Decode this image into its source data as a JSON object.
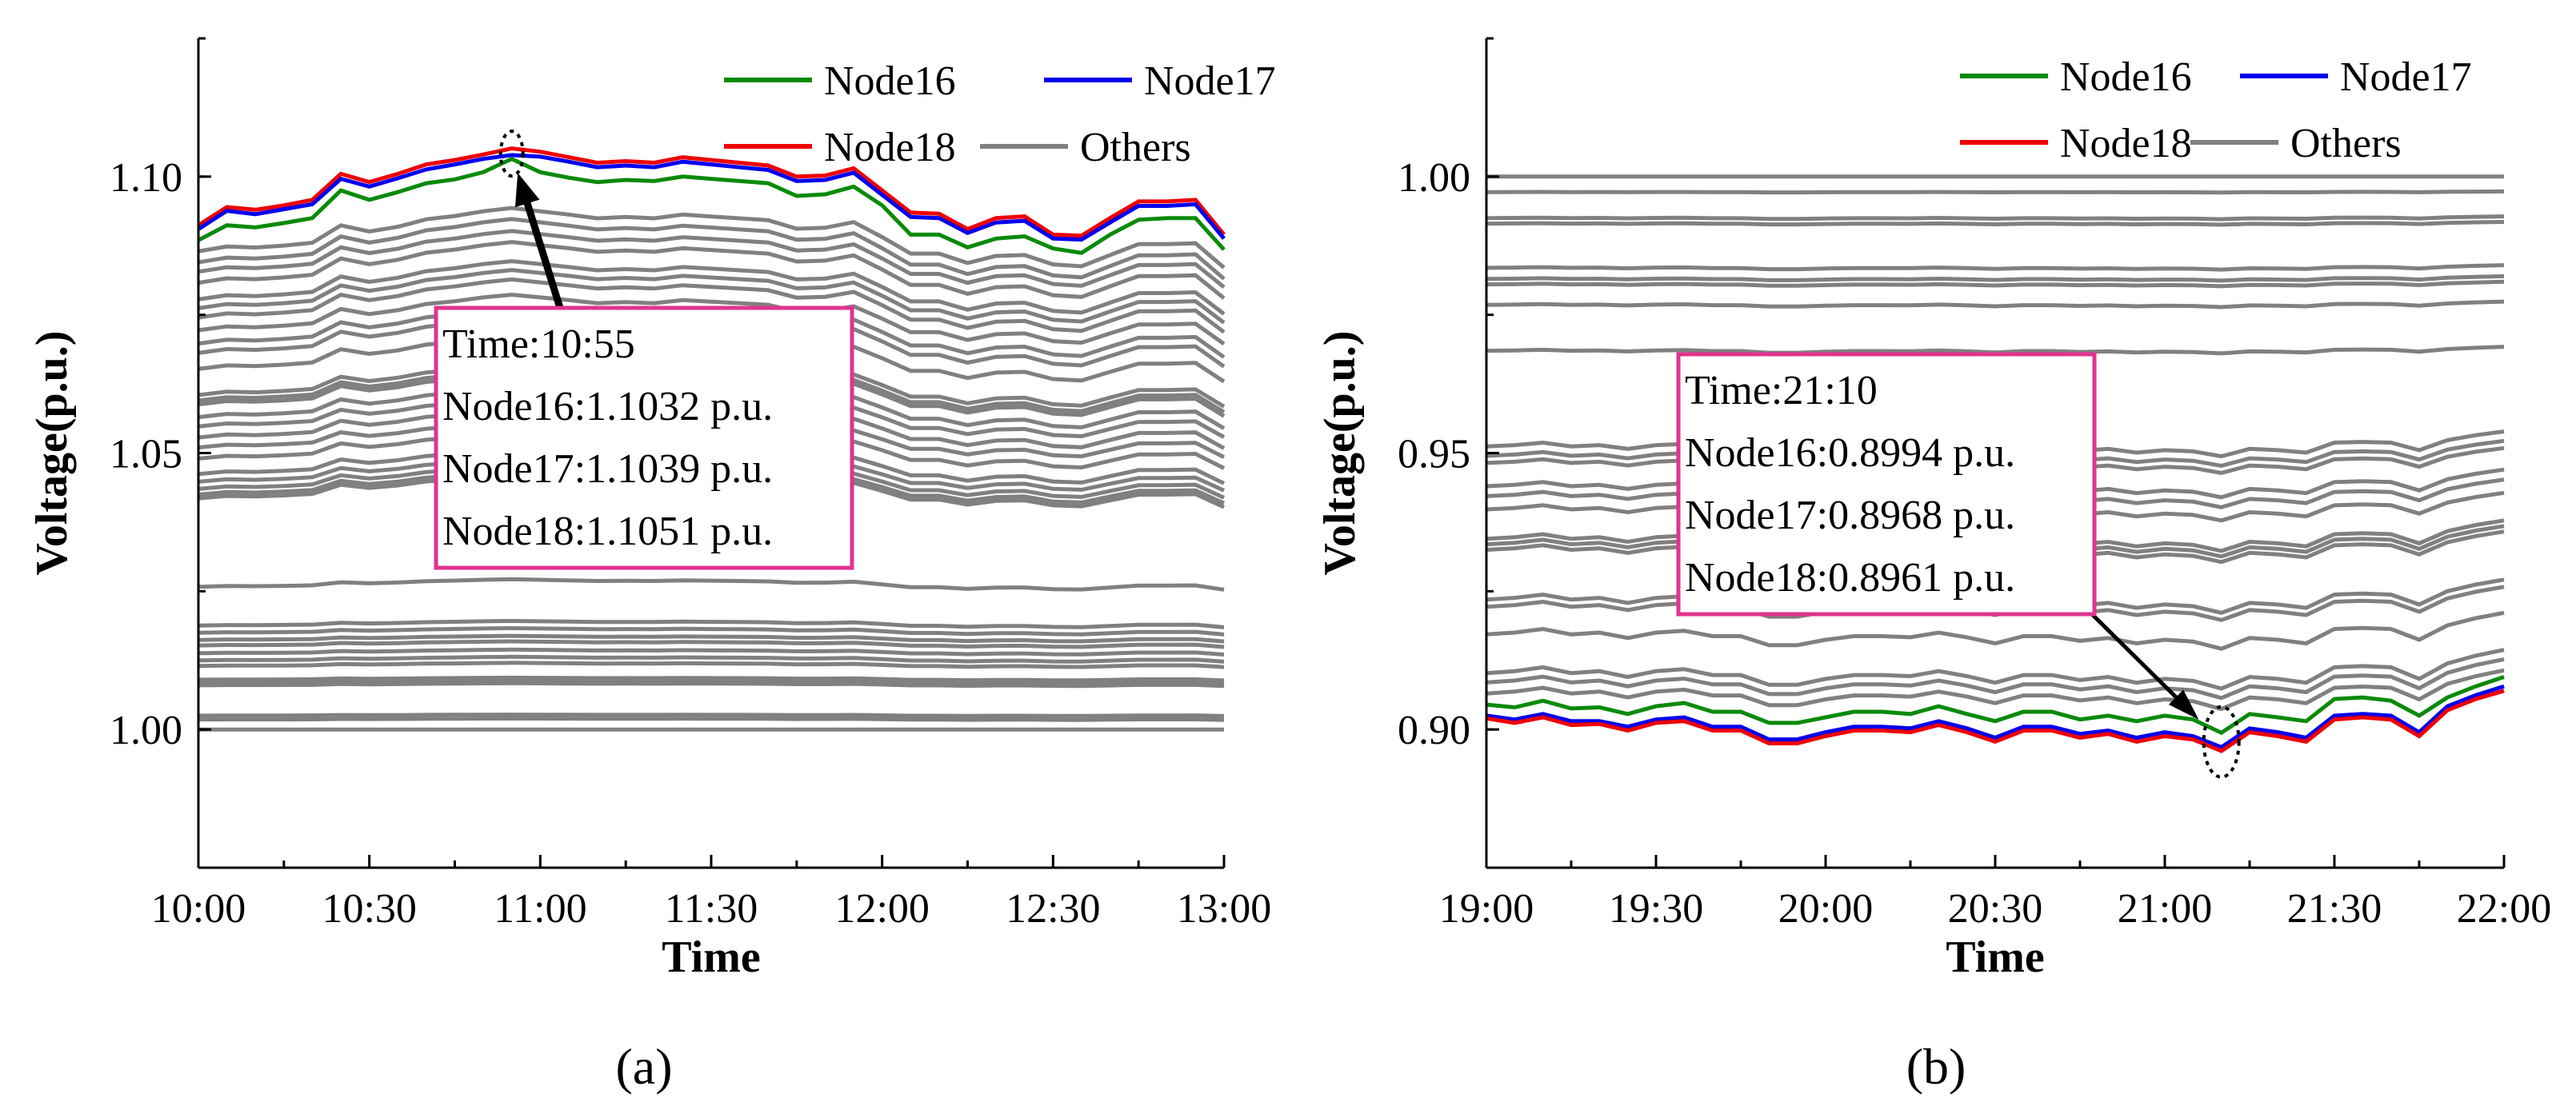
{
  "colors": {
    "node16": "#0a8a0a",
    "node17": "#0000ee",
    "node18": "#ee0000",
    "others": "#808080",
    "annotation_box": "#e0338f",
    "axes": "#000000"
  },
  "chart_data": [
    {
      "type": "line",
      "panel_label": "(a)",
      "xlabel": "Time",
      "ylabel": "Voltage(p.u.)",
      "xlim": [
        "10:00",
        "13:00"
      ],
      "ylim": [
        0.975,
        1.125
      ],
      "xticks": [
        "10:00",
        "10:30",
        "11:00",
        "11:30",
        "12:00",
        "12:30",
        "13:00"
      ],
      "yticks": [
        "1.00",
        "1.05",
        "1.10"
      ],
      "ytick_values": [
        1.0,
        1.05,
        1.1
      ],
      "grid": false,
      "legend": {
        "placement": "top-right",
        "entries": [
          "Node16",
          "Node17",
          "Node18",
          "Others"
        ]
      },
      "x": [
        "10:00",
        "10:05",
        "10:10",
        "10:15",
        "10:20",
        "10:25",
        "10:30",
        "10:35",
        "10:40",
        "10:45",
        "10:50",
        "10:55",
        "11:00",
        "11:05",
        "11:10",
        "11:15",
        "11:20",
        "11:25",
        "11:30",
        "11:35",
        "11:40",
        "11:45",
        "11:50",
        "11:55",
        "12:00",
        "12:05",
        "12:10",
        "12:15",
        "12:20",
        "12:25",
        "12:30",
        "12:35",
        "12:40",
        "12:45",
        "12:50",
        "12:55",
        "13:00"
      ],
      "series": [
        {
          "name": "Node18",
          "color_key": "node18",
          "values": [
            1.0912,
            1.0945,
            1.094,
            1.0948,
            1.0958,
            1.1005,
            1.099,
            1.1005,
            1.1022,
            1.103,
            1.104,
            1.1051,
            1.1045,
            1.1035,
            1.1025,
            1.1028,
            1.1025,
            1.1035,
            1.103,
            1.1025,
            1.102,
            1.1,
            1.1002,
            1.1015,
            1.0975,
            1.0935,
            1.0933,
            1.0905,
            1.0925,
            1.0928,
            1.0895,
            1.0893,
            1.0925,
            1.0955,
            1.0955,
            1.0958,
            1.0895
          ]
        },
        {
          "name": "Node17",
          "color_key": "node17",
          "values": [
            1.0905,
            1.0938,
            1.0932,
            1.0941,
            1.095,
            1.0996,
            1.0982,
            1.0997,
            1.1013,
            1.1022,
            1.1032,
            1.1039,
            1.1036,
            1.1027,
            1.1017,
            1.102,
            1.1017,
            1.1027,
            1.1022,
            1.1017,
            1.1012,
            1.0992,
            1.0994,
            1.1007,
            1.0967,
            1.0927,
            1.0925,
            1.0898,
            1.0917,
            1.092,
            1.0888,
            1.0886,
            1.0917,
            1.0947,
            1.0947,
            1.095,
            1.0888
          ]
        },
        {
          "name": "Node16",
          "color_key": "node16",
          "values": [
            1.0885,
            1.0912,
            1.0908,
            1.0916,
            1.0925,
            1.0975,
            1.0958,
            1.0972,
            1.0988,
            1.0995,
            1.1008,
            1.1032,
            1.1008,
            1.0998,
            1.099,
            1.0994,
            1.0992,
            1.1,
            1.0996,
            1.0992,
            1.0988,
            1.0965,
            1.0968,
            1.0982,
            1.0948,
            1.0895,
            1.0895,
            1.0872,
            1.0888,
            1.0892,
            1.087,
            1.0862,
            1.0895,
            1.0922,
            1.0925,
            1.0925,
            1.0868
          ]
        }
      ],
      "others": {
        "name": "Others",
        "color_key": "others",
        "profile": [
          0,
          0.1,
          0.08,
          0.12,
          0.18,
          0.55,
          0.42,
          0.52,
          0.68,
          0.75,
          0.85,
          0.92,
          0.85,
          0.78,
          0.7,
          0.73,
          0.7,
          0.78,
          0.74,
          0.7,
          0.66,
          0.48,
          0.5,
          0.62,
          0.3,
          -0.05,
          -0.05,
          -0.25,
          -0.1,
          -0.08,
          -0.28,
          -0.32,
          -0.08,
          0.15,
          0.15,
          0.17,
          -0.35
        ],
        "lines": [
          {
            "base": 1.0865,
            "amp": 0.0085
          },
          {
            "base": 1.0845,
            "amp": 0.0085
          },
          {
            "base": 1.0828,
            "amp": 0.008
          },
          {
            "base": 1.0808,
            "amp": 0.008
          },
          {
            "base": 1.0778,
            "amp": 0.0075
          },
          {
            "base": 1.0762,
            "amp": 0.0075
          },
          {
            "base": 1.0745,
            "amp": 0.0075
          },
          {
            "base": 1.0722,
            "amp": 0.007
          },
          {
            "base": 1.0698,
            "amp": 0.007
          },
          {
            "base": 1.0681,
            "amp": 0.007
          },
          {
            "base": 1.0652,
            "amp": 0.0065
          },
          {
            "base": 1.0605,
            "amp": 0.006
          },
          {
            "base": 1.0595,
            "amp": 0.006
          },
          {
            "base": 1.0588,
            "amp": 0.006
          },
          {
            "base": 1.0565,
            "amp": 0.0058
          },
          {
            "base": 1.0548,
            "amp": 0.0055
          },
          {
            "base": 1.0528,
            "amp": 0.0055
          },
          {
            "base": 1.051,
            "amp": 0.005
          },
          {
            "base": 1.049,
            "amp": 0.005
          },
          {
            "base": 1.0462,
            "amp": 0.0048
          },
          {
            "base": 1.0448,
            "amp": 0.0045
          },
          {
            "base": 1.0435,
            "amp": 0.0045
          },
          {
            "base": 1.0425,
            "amp": 0.0045
          },
          {
            "base": 1.0418,
            "amp": 0.0045
          },
          {
            "base": 1.0258,
            "amp": 0.0015
          },
          {
            "base": 1.0188,
            "amp": 0.0009
          },
          {
            "base": 1.0175,
            "amp": 0.0009
          },
          {
            "base": 1.0162,
            "amp": 0.0008
          },
          {
            "base": 1.0152,
            "amp": 0.0008
          },
          {
            "base": 1.0138,
            "amp": 0.0007
          },
          {
            "base": 1.0125,
            "amp": 0.0007
          },
          {
            "base": 1.0115,
            "amp": 0.0006
          },
          {
            "base": 1.009,
            "amp": 0.0004
          },
          {
            "base": 1.0085,
            "amp": 0.0004
          },
          {
            "base": 1.008,
            "amp": 0.0004
          },
          {
            "base": 1.0025,
            "amp": 0.0002
          },
          {
            "base": 1.0018,
            "amp": 0.0002
          },
          {
            "base": 1.0,
            "amp": 0
          }
        ]
      },
      "annotation": {
        "time": "10:55",
        "lines": [
          "Time:10:55",
          "Node16:1.1032 p.u.",
          "Node17:1.1039 p.u.",
          "Node18:1.1051 p.u."
        ]
      }
    },
    {
      "type": "line",
      "panel_label": "(b)",
      "xlabel": "Time",
      "ylabel": "Voltage(p.u.)",
      "xlim": [
        "19:00",
        "22:00"
      ],
      "ylim": [
        0.875,
        1.025
      ],
      "xticks": [
        "19:00",
        "19:30",
        "20:00",
        "20:30",
        "21:00",
        "21:30",
        "22:00"
      ],
      "yticks": [
        "0.90",
        "0.95",
        "1.00"
      ],
      "ytick_values": [
        0.9,
        0.95,
        1.0
      ],
      "grid": false,
      "legend": {
        "placement": "top-right",
        "entries": [
          "Node16",
          "Node17",
          "Node18",
          "Others"
        ]
      },
      "x": [
        "19:00",
        "19:05",
        "19:10",
        "19:15",
        "19:20",
        "19:25",
        "19:30",
        "19:35",
        "19:40",
        "19:45",
        "19:50",
        "19:55",
        "20:00",
        "20:05",
        "20:10",
        "20:15",
        "20:20",
        "20:25",
        "20:30",
        "20:35",
        "20:40",
        "20:45",
        "20:50",
        "20:55",
        "21:00",
        "21:05",
        "21:10",
        "21:15",
        "21:20",
        "21:25",
        "21:30",
        "21:35",
        "21:40",
        "21:45",
        "21:50",
        "21:55",
        "22:00"
      ],
      "series": [
        {
          "name": "Node16",
          "color_key": "node16",
          "values": [
            0.9045,
            0.904,
            0.9052,
            0.9038,
            0.904,
            0.9028,
            0.9042,
            0.9048,
            0.9032,
            0.9032,
            0.9012,
            0.9012,
            0.9022,
            0.9032,
            0.9032,
            0.9028,
            0.9042,
            0.9028,
            0.9015,
            0.9032,
            0.9032,
            0.9018,
            0.9025,
            0.9015,
            0.9025,
            0.9018,
            0.8994,
            0.9028,
            0.9022,
            0.9015,
            0.9055,
            0.9058,
            0.9052,
            0.9025,
            0.9058,
            0.9078,
            0.9095
          ]
        },
        {
          "name": "Node17",
          "color_key": "node17",
          "values": [
            0.9025,
            0.9018,
            0.9028,
            0.9015,
            0.9015,
            0.9005,
            0.9018,
            0.9022,
            0.9005,
            0.9005,
            0.8982,
            0.8982,
            0.8995,
            0.9005,
            0.9005,
            0.9002,
            0.9015,
            0.9002,
            0.8985,
            0.9005,
            0.9005,
            0.8992,
            0.8998,
            0.8985,
            0.8995,
            0.8988,
            0.8968,
            0.9002,
            0.8995,
            0.8985,
            0.9025,
            0.9028,
            0.9025,
            0.8995,
            0.9042,
            0.9062,
            0.9078
          ]
        },
        {
          "name": "Node18",
          "color_key": "node18",
          "values": [
            0.902,
            0.9012,
            0.9022,
            0.9008,
            0.901,
            0.8998,
            0.9012,
            0.9015,
            0.8998,
            0.8998,
            0.8975,
            0.8975,
            0.8988,
            0.8998,
            0.8998,
            0.8995,
            0.9008,
            0.8995,
            0.8978,
            0.8998,
            0.8998,
            0.8985,
            0.8992,
            0.8978,
            0.8988,
            0.8982,
            0.8961,
            0.8995,
            0.8988,
            0.8978,
            0.9018,
            0.9022,
            0.9018,
            0.8988,
            0.9035,
            0.9055,
            0.907
          ]
        }
      ],
      "others": {
        "name": "Others",
        "color_key": "others",
        "profile": [
          0,
          0.05,
          0.15,
          0,
          0.05,
          -0.1,
          0.05,
          0.1,
          -0.05,
          -0.05,
          -0.3,
          -0.3,
          -0.15,
          -0.05,
          -0.05,
          -0.08,
          0.05,
          -0.08,
          -0.25,
          -0.05,
          -0.05,
          -0.18,
          -0.1,
          -0.25,
          -0.15,
          -0.2,
          -0.4,
          -0.1,
          -0.15,
          -0.25,
          0.15,
          0.18,
          0.15,
          -0.15,
          0.25,
          0.45,
          0.6
        ],
        "lines": [
          {
            "base": 1.0,
            "amp": 0
          },
          {
            "base": 0.9972,
            "amp": 0.0002
          },
          {
            "base": 0.9925,
            "amp": 0.0005
          },
          {
            "base": 0.9915,
            "amp": 0.0005
          },
          {
            "base": 0.9835,
            "amp": 0.0008
          },
          {
            "base": 0.9815,
            "amp": 0.0008
          },
          {
            "base": 0.9805,
            "amp": 0.0008
          },
          {
            "base": 0.9768,
            "amp": 0.001
          },
          {
            "base": 0.9685,
            "amp": 0.0012
          },
          {
            "base": 0.9512,
            "amp": 0.0045
          },
          {
            "base": 0.9495,
            "amp": 0.0045
          },
          {
            "base": 0.9482,
            "amp": 0.0045
          },
          {
            "base": 0.944,
            "amp": 0.005
          },
          {
            "base": 0.9422,
            "amp": 0.005
          },
          {
            "base": 0.9398,
            "amp": 0.005
          },
          {
            "base": 0.9345,
            "amp": 0.0055
          },
          {
            "base": 0.9335,
            "amp": 0.0055
          },
          {
            "base": 0.9325,
            "amp": 0.0055
          },
          {
            "base": 0.9235,
            "amp": 0.006
          },
          {
            "base": 0.9222,
            "amp": 0.006
          },
          {
            "base": 0.9172,
            "amp": 0.0065
          },
          {
            "base": 0.9102,
            "amp": 0.007
          },
          {
            "base": 0.9085,
            "amp": 0.007
          },
          {
            "base": 0.9065,
            "amp": 0.007
          }
        ]
      },
      "annotation": {
        "time": "21:10",
        "lines": [
          "Time:21:10",
          "Node16:0.8994 p.u.",
          "Node17:0.8968 p.u.",
          "Node18:0.8961 p.u."
        ]
      }
    }
  ]
}
